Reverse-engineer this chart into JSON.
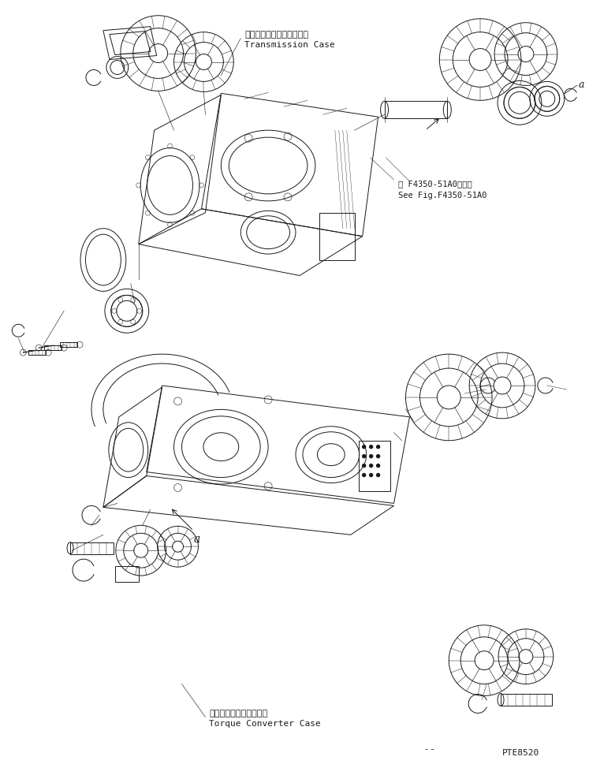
{
  "bg_color": "#ffffff",
  "line_color": "#1a1a1a",
  "fig_width": 7.47,
  "fig_height": 9.7,
  "dpi": 100,
  "title_jp_transmission": "トランスミッションケース",
  "title_en_transmission": "Transmission Case",
  "title_jp_torque": "トルクコンバータケース",
  "title_en_torque": "Torque Converter Case",
  "ref_jp": "第 F4350-51A0図参照",
  "ref_en": "See Fig.F4350-51A0",
  "code": "PTE8520",
  "label_a_top": "a",
  "label_a_bot": "a"
}
